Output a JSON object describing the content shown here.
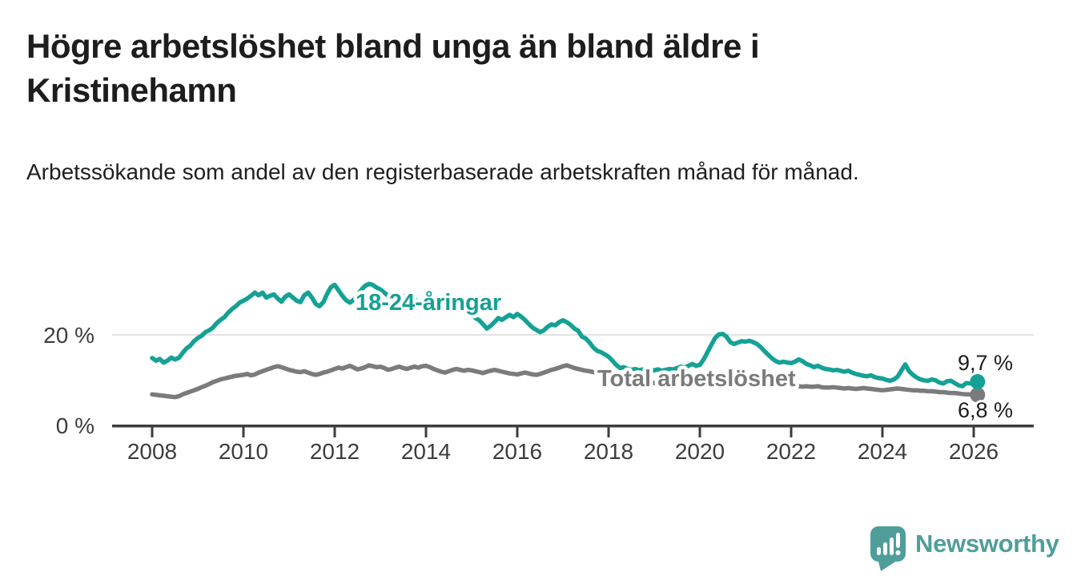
{
  "header": {
    "title": "Högre arbetslöshet bland unga än bland äldre i Kristinehamn",
    "subtitle": "Arbetssökande som andel av den registerbaserade arbetskraften månad för månad."
  },
  "chart_data": {
    "type": "line",
    "title": "Högre arbetslöshet bland unga än bland äldre i Kristinehamn",
    "xlabel": "",
    "ylabel": "Arbetssökande som andel av den registerbaserade arbetskraften",
    "unit": "%",
    "frequency": "monthly",
    "x_start": "2008-01",
    "x_end": "2026-02",
    "x_ticks": [
      2008,
      2010,
      2012,
      2014,
      2016,
      2018,
      2020,
      2022,
      2024,
      2026
    ],
    "y_ticks": [
      {
        "value": 0,
        "label": "0 %"
      },
      {
        "value": 20,
        "label": "20 %"
      }
    ],
    "ylim": [
      0,
      33
    ],
    "grid": "horizontal-20-only",
    "legend_position": "inline-labels-on-lines",
    "series": [
      {
        "name": "18-24-åringar",
        "label": "18-24-åringar",
        "color": "#15a195",
        "end_value": 9.7,
        "end_label": "9,7 %",
        "values": [
          14.9,
          14.3,
          14.7,
          13.9,
          14.3,
          15.0,
          14.6,
          14.9,
          16.0,
          17.0,
          17.6,
          18.6,
          19.3,
          19.8,
          20.6,
          21.0,
          21.6,
          22.6,
          23.3,
          23.9,
          24.9,
          25.7,
          26.3,
          27.1,
          27.5,
          28.0,
          28.6,
          29.3,
          28.7,
          29.3,
          28.2,
          28.6,
          28.9,
          28.0,
          27.3,
          28.4,
          28.9,
          28.2,
          27.5,
          27.2,
          28.7,
          29.3,
          28.2,
          26.8,
          26.3,
          27.2,
          29.0,
          30.5,
          31.0,
          29.8,
          28.6,
          27.6,
          27.1,
          27.7,
          28.8,
          29.9,
          30.8,
          31.2,
          31.0,
          30.4,
          30.0,
          29.3,
          28.6,
          28.0,
          27.6,
          28.1,
          28.5,
          27.9,
          27.4,
          27.8,
          27.3,
          26.9,
          27.4,
          26.8,
          26.2,
          26.6,
          26.0,
          25.6,
          26.1,
          26.6,
          25.9,
          25.4,
          25.7,
          25.0,
          24.4,
          23.7,
          23.2,
          22.3,
          21.4,
          22.0,
          22.8,
          23.7,
          23.3,
          23.9,
          24.4,
          23.9,
          24.6,
          24.0,
          23.3,
          22.4,
          21.6,
          21.1,
          20.6,
          21.0,
          21.8,
          22.3,
          22.1,
          22.8,
          23.2,
          22.8,
          22.2,
          21.4,
          20.9,
          19.6,
          19.2,
          18.3,
          17.2,
          16.5,
          16.2,
          15.7,
          15.2,
          14.3,
          13.4,
          12.7,
          12.9,
          12.5,
          12.3,
          12.5,
          12.2,
          12.4,
          12.2,
          12.3,
          12.2,
          12.4,
          12.1,
          12.3,
          12.5,
          12.4,
          12.7,
          13.0,
          12.8,
          13.2,
          13.6,
          13.2,
          13.4,
          14.6,
          16.2,
          17.8,
          19.3,
          20.1,
          20.2,
          19.6,
          18.4,
          18.0,
          18.3,
          18.6,
          18.5,
          18.7,
          18.4,
          18.0,
          17.3,
          16.4,
          15.6,
          14.8,
          14.2,
          13.9,
          14.1,
          13.9,
          13.8,
          14.1,
          14.6,
          14.2,
          13.6,
          13.3,
          12.9,
          13.2,
          12.8,
          12.5,
          12.4,
          12.2,
          12.3,
          12.1,
          11.9,
          12.1,
          11.7,
          11.4,
          11.2,
          11.0,
          10.9,
          11.1,
          10.7,
          10.5,
          10.4,
          10.1,
          9.9,
          10.2,
          10.8,
          12.2,
          13.5,
          12.0,
          11.2,
          10.6,
          10.2,
          10.0,
          9.9,
          10.2,
          10.0,
          9.5,
          9.3,
          9.8,
          9.9,
          9.4,
          8.9,
          8.7,
          9.4,
          9.3,
          9.4,
          9.7
        ]
      },
      {
        "name": "Total arbetslöshet",
        "label": "Total arbetslöshet",
        "color": "#7b7b7d",
        "end_value": 6.8,
        "end_label": "6,8 %",
        "values": [
          6.9,
          6.8,
          6.7,
          6.6,
          6.5,
          6.4,
          6.3,
          6.5,
          6.9,
          7.2,
          7.5,
          7.8,
          8.1,
          8.5,
          8.8,
          9.2,
          9.6,
          9.9,
          10.2,
          10.4,
          10.6,
          10.8,
          11.0,
          11.1,
          11.2,
          11.4,
          11.1,
          11.3,
          11.7,
          12.0,
          12.3,
          12.6,
          12.9,
          13.1,
          12.9,
          12.6,
          12.3,
          12.1,
          11.9,
          11.8,
          12.0,
          11.7,
          11.4,
          11.2,
          11.4,
          11.7,
          11.9,
          12.2,
          12.5,
          12.8,
          12.6,
          12.9,
          13.2,
          12.8,
          12.4,
          12.6,
          12.9,
          13.3,
          13.1,
          12.9,
          13.0,
          12.7,
          12.3,
          12.5,
          12.8,
          13.0,
          12.7,
          12.5,
          12.8,
          13.0,
          12.8,
          13.1,
          13.2,
          12.9,
          12.5,
          12.2,
          11.9,
          11.7,
          12.0,
          12.3,
          12.5,
          12.3,
          12.1,
          12.3,
          12.2,
          12.0,
          11.8,
          11.6,
          11.9,
          12.1,
          12.3,
          12.1,
          11.9,
          11.7,
          11.5,
          11.4,
          11.3,
          11.5,
          11.7,
          11.5,
          11.3,
          11.2,
          11.4,
          11.7,
          12.0,
          12.3,
          12.5,
          12.8,
          13.1,
          13.3,
          13.0,
          12.7,
          12.5,
          12.3,
          12.1,
          12.0,
          11.8,
          11.6,
          11.4,
          11.2,
          11.0,
          10.8,
          10.6,
          10.4,
          10.3,
          10.2,
          10.0,
          9.9,
          9.8,
          9.7,
          9.6,
          9.5,
          9.4,
          9.3,
          9.3,
          9.2,
          9.2,
          9.3,
          9.4,
          9.6,
          9.9,
          10.2,
          10.5,
          10.8,
          11.0,
          11.2,
          11.4,
          11.5,
          11.4,
          11.3,
          11.2,
          11.0,
          10.9,
          10.8,
          10.6,
          10.5,
          10.4,
          10.2,
          10.0,
          9.8,
          9.6,
          9.4,
          9.3,
          9.1,
          9.0,
          8.9,
          8.9,
          8.8,
          8.8,
          8.7,
          8.7,
          8.6,
          8.7,
          8.6,
          8.6,
          8.7,
          8.5,
          8.4,
          8.4,
          8.5,
          8.4,
          8.3,
          8.2,
          8.3,
          8.2,
          8.1,
          8.2,
          8.3,
          8.2,
          8.1,
          8.0,
          7.9,
          7.8,
          7.9,
          8.0,
          8.1,
          8.2,
          8.1,
          8.0,
          7.9,
          7.8,
          7.8,
          7.7,
          7.7,
          7.6,
          7.6,
          7.5,
          7.4,
          7.4,
          7.3,
          7.2,
          7.2,
          7.1,
          7.0,
          6.9,
          6.9,
          6.8,
          6.8
        ]
      }
    ]
  },
  "logo": {
    "text": "Newsworthy",
    "icon": "newsworthy-speech-bubble-bar-chart-icon",
    "color": "#4f9e9b"
  },
  "colors": {
    "series_youth": "#15a195",
    "series_total": "#7b7b7d",
    "axis": "#3d3d3d",
    "gridline": "#d9d9d9",
    "text": "#1d1d1d",
    "background": "#ffffff"
  }
}
